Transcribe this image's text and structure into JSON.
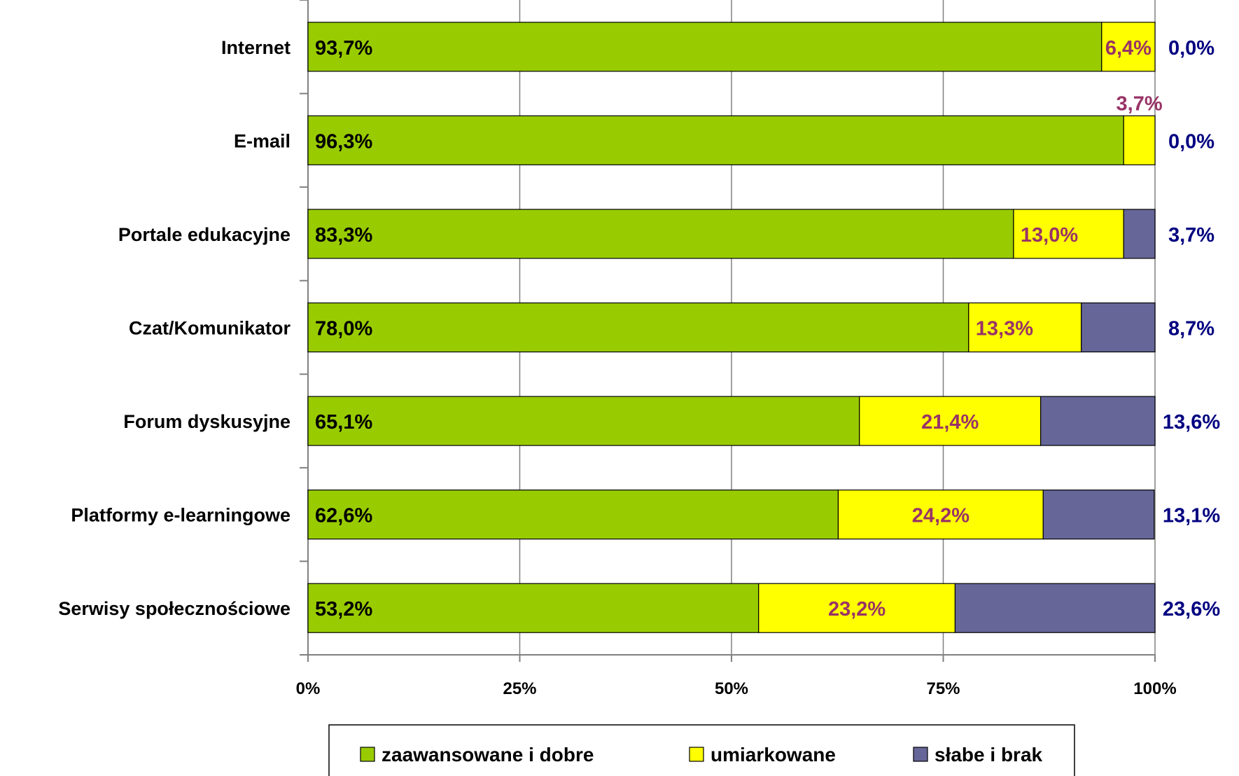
{
  "chart_data": {
    "type": "bar",
    "orientation": "horizontal",
    "stacked": "percent",
    "categories": [
      "Internet",
      "E-mail",
      "Portale edukacyjne",
      "Czat/Komunikator",
      "Forum dyskusyjne",
      "Platformy e-learningowe",
      "Serwisy społecznościowe"
    ],
    "series": [
      {
        "name": "zaawansowane i dobre",
        "color": "#99cc00",
        "label_color": "#000000",
        "values": [
          93.7,
          96.3,
          83.3,
          78.0,
          65.1,
          62.6,
          53.2
        ],
        "labels": [
          "93,7%",
          "96,3%",
          "83,3%",
          "78,0%",
          "65,1%",
          "62,6%",
          "53,2%"
        ]
      },
      {
        "name": "umiarkowane",
        "color": "#ffff00",
        "label_color": "#993366",
        "values": [
          6.4,
          3.7,
          13.0,
          13.3,
          21.4,
          24.2,
          23.2
        ],
        "labels": [
          "6,4%",
          "3,7%",
          "13,0%",
          "13,3%",
          "21,4%",
          "24,2%",
          "23,2%"
        ]
      },
      {
        "name": "słabe i brak",
        "color": "#666699",
        "label_color": "#000080",
        "values": [
          0.0,
          0.0,
          3.7,
          8.7,
          13.6,
          13.1,
          23.6
        ],
        "labels": [
          "0,0%",
          "0,0%",
          "3,7%",
          "8,7%",
          "13,6%",
          "13,1%",
          "23,6%"
        ]
      }
    ],
    "xlim": [
      0,
      100
    ],
    "xticks": [
      0,
      25,
      50,
      75,
      100
    ],
    "xtick_labels": [
      "0%",
      "25%",
      "50%",
      "75%",
      "100%"
    ],
    "grid": "vertical",
    "legend": "bottom"
  }
}
